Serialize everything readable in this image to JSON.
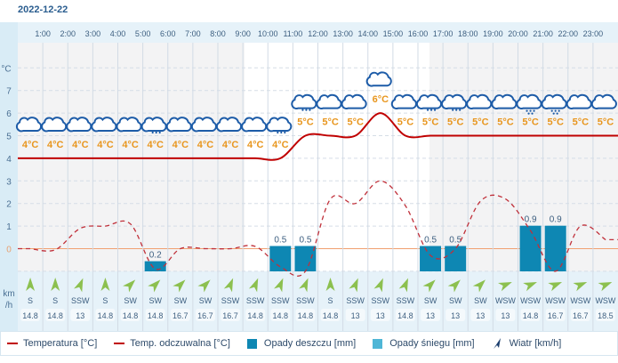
{
  "date": "2022-12-22",
  "axis": {
    "temp_unit": "°C",
    "wind_unit_1": "km",
    "wind_unit_2": "/h",
    "ticks": [
      "0",
      "1",
      "2",
      "3",
      "4",
      "5",
      "6",
      "7"
    ]
  },
  "hours": [
    "1:00",
    "2:00",
    "3:00",
    "4:00",
    "5:00",
    "6:00",
    "7:00",
    "8:00",
    "9:00",
    "10:00",
    "11:00",
    "12:00",
    "13:00",
    "14:00",
    "15:00",
    "16:00",
    "17:00",
    "18:00",
    "19:00",
    "20:00",
    "21:00",
    "22:00",
    "23:00"
  ],
  "colors": {
    "temp": "#c00000",
    "feels": "#c0303a",
    "rain": "#0e87b3",
    "snow": "#4fb6d6",
    "wind": "#8cc04f",
    "label": "#e8961e",
    "icon": "#1d5ca8"
  },
  "chart_data": {
    "type": "line",
    "x": [
      0,
      1,
      2,
      3,
      4,
      5,
      6,
      7,
      8,
      9,
      10,
      11,
      12,
      13,
      14,
      15,
      16,
      17,
      18,
      19,
      20,
      21,
      22,
      23
    ],
    "temperature": [
      4,
      4,
      4,
      4,
      4,
      4,
      4,
      4,
      4,
      4,
      4,
      5,
      5,
      5,
      6,
      5,
      5,
      5,
      5,
      5,
      5,
      5,
      5,
      5
    ],
    "temp_labels": [
      "4°C",
      "4°C",
      "4°C",
      "4°C",
      "4°C",
      "4°C",
      "4°C",
      "4°C",
      "4°C",
      "4°C",
      "4°C",
      "5°C",
      "5°C",
      "5°C",
      "6°C",
      "5°C",
      "5°C",
      "5°C",
      "5°C",
      "5°C",
      "5°C",
      "5°C",
      "5°C",
      "5°C"
    ],
    "feels_like": [
      0,
      -0.05,
      0.9,
      1.0,
      1.1,
      -0.9,
      0,
      0,
      0,
      0.1,
      -0.8,
      -1,
      2.2,
      2.0,
      3.0,
      1.9,
      -0.3,
      0,
      2.1,
      2.2,
      0.8,
      -1,
      1.0,
      0.4
    ],
    "rain": [
      0,
      0,
      0,
      0,
      0,
      0.2,
      0,
      0,
      0,
      0,
      0.5,
      0.5,
      0,
      0,
      0,
      0,
      0.5,
      0.5,
      0,
      0,
      0.9,
      0.9,
      0,
      0
    ],
    "rain_labels": [
      "",
      "",
      "",
      "",
      "",
      "0.2",
      "",
      "",
      "",
      "",
      "0.5",
      "0.5",
      "",
      "",
      "",
      "",
      "0.5",
      "0.5",
      "",
      "",
      "0.9",
      "0.9",
      "",
      ""
    ],
    "weather": [
      "cloudy",
      "cloudy",
      "cloudy",
      "cloudy",
      "cloudy",
      "light-rain",
      "cloudy",
      "cloudy",
      "cloudy",
      "cloudy",
      "light-rain",
      "light-rain",
      "cloudy",
      "cloudy",
      "cloudy",
      "cloudy",
      "light-rain",
      "light-rain",
      "cloudy",
      "cloudy",
      "rain",
      "rain",
      "cloudy",
      "cloudy"
    ],
    "wind_dir": [
      "S",
      "S",
      "SSW",
      "S",
      "SW",
      "SW",
      "SW",
      "SW",
      "SSW",
      "SSW",
      "SSW",
      "SSW",
      "S",
      "SSW",
      "SSW",
      "SSW",
      "SW",
      "SW",
      "SW",
      "WSW",
      "WSW",
      "WSW",
      "WSW",
      "WSW"
    ],
    "wind_speed": [
      "14.8",
      "14.8",
      "13",
      "14.8",
      "14.8",
      "14.8",
      "16.7",
      "16.7",
      "16.7",
      "14.8",
      "14.8",
      "14.8",
      "14.8",
      "13",
      "13",
      "14.8",
      "13",
      "13",
      "13",
      "13",
      "14.8",
      "16.7",
      "16.7",
      "18.5"
    ],
    "ylim": [
      -1,
      8
    ]
  },
  "legend": {
    "temp": "Temperatura [°C]",
    "feels": "Temp. odczuwalna [°C]",
    "rain": "Opady deszczu [mm]",
    "snow": "Opady śniegu [mm]",
    "wind": "Wiatr [km/h]"
  }
}
